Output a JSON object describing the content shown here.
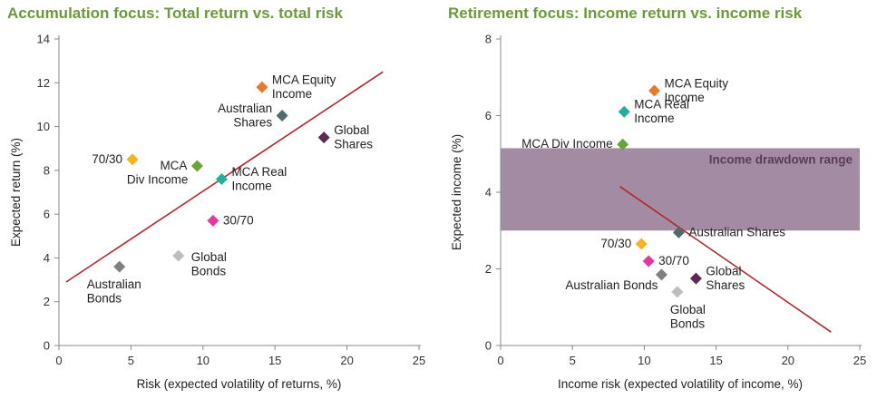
{
  "colors": {
    "title": "#6a9a3a",
    "axis": "#888888",
    "regression": "#b0282e",
    "band": "#a38ca3",
    "band_label": "#5b3a5b"
  },
  "chart_data": [
    {
      "type": "scatter",
      "title": "Accumulation focus: Total return vs. total risk",
      "xlabel": "Risk (expected volatility of returns, %)",
      "ylabel": "Expected return (%)",
      "xlim": [
        0,
        25
      ],
      "ylim": [
        0,
        14
      ],
      "xticks": [
        0,
        5,
        10,
        15,
        20,
        25
      ],
      "yticks": [
        0,
        2,
        4,
        6,
        8,
        10,
        12,
        14
      ],
      "trendline": {
        "x": [
          0.5,
          22.5
        ],
        "y": [
          2.9,
          12.5
        ]
      },
      "points": [
        {
          "label": "MCA Equity Income",
          "lines": [
            "MCA Equity",
            "Income"
          ],
          "x": 14.1,
          "y": 11.8,
          "color": "#e87a2a",
          "anchor": "right"
        },
        {
          "label": "Australian Shares",
          "lines": [
            "Australian",
            "Shares"
          ],
          "x": 15.5,
          "y": 10.5,
          "color": "#4f6b6b",
          "anchor": "left"
        },
        {
          "label": "Global Shares",
          "lines": [
            "Global",
            "Shares"
          ],
          "x": 18.4,
          "y": 9.5,
          "color": "#5a2a55",
          "anchor": "right"
        },
        {
          "label": "70/30",
          "lines": [
            "70/30"
          ],
          "x": 5.1,
          "y": 8.5,
          "color": "#f5b41e",
          "anchor": "left"
        },
        {
          "label": "MCA Div Income",
          "lines": [
            "MCA",
            "Div Income"
          ],
          "x": 9.6,
          "y": 8.2,
          "color": "#6aa33a",
          "anchor": "leftsplit"
        },
        {
          "label": "MCA Real Income",
          "lines": [
            "MCA Real",
            "Income"
          ],
          "x": 11.3,
          "y": 7.6,
          "color": "#1fb19b",
          "anchor": "right"
        },
        {
          "label": "30/70",
          "lines": [
            "30/70"
          ],
          "x": 10.7,
          "y": 5.7,
          "color": "#e8379b",
          "anchor": "right"
        },
        {
          "label": "Global Bonds",
          "lines": [
            "Global",
            "Bonds"
          ],
          "x": 8.3,
          "y": 4.1,
          "color": "#bdbdbd",
          "anchor": "below-right"
        },
        {
          "label": "Australian Bonds",
          "lines": [
            "Australian",
            "Bonds"
          ],
          "x": 4.2,
          "y": 3.6,
          "color": "#808080",
          "anchor": "below"
        }
      ]
    },
    {
      "type": "scatter",
      "title": "Retirement focus: Income return vs. income risk",
      "xlabel": "Income risk (expected volatility of income, %)",
      "ylabel": "Expected income (%)",
      "xlim": [
        0,
        25
      ],
      "ylim": [
        0,
        8
      ],
      "xticks": [
        0,
        5,
        10,
        15,
        20,
        25
      ],
      "yticks": [
        0,
        2,
        4,
        6,
        8
      ],
      "band": {
        "label": "Income drawdown range",
        "y0": 3.0,
        "y1": 5.15
      },
      "trendline": {
        "x": [
          8.3,
          23.0
        ],
        "y": [
          4.15,
          0.35
        ]
      },
      "points": [
        {
          "label": "MCA Equity Income",
          "lines": [
            "MCA Equity",
            "Income"
          ],
          "x": 10.7,
          "y": 6.65,
          "color": "#e87a2a",
          "anchor": "right"
        },
        {
          "label": "MCA Real Income",
          "lines": [
            "MCA Real",
            "Income"
          ],
          "x": 8.6,
          "y": 6.1,
          "color": "#1fb19b",
          "anchor": "right"
        },
        {
          "label": "MCA Div Income",
          "lines": [
            "MCA Div Income"
          ],
          "x": 8.5,
          "y": 5.25,
          "color": "#6aa33a",
          "anchor": "left"
        },
        {
          "label": "Australian Shares",
          "lines": [
            "Australian Shares"
          ],
          "x": 12.4,
          "y": 2.95,
          "color": "#4f6b6b",
          "anchor": "right"
        },
        {
          "label": "70/30",
          "lines": [
            "70/30"
          ],
          "x": 9.8,
          "y": 2.65,
          "color": "#f5b41e",
          "anchor": "left"
        },
        {
          "label": "30/70",
          "lines": [
            "30/70"
          ],
          "x": 10.3,
          "y": 2.2,
          "color": "#e8379b",
          "anchor": "right"
        },
        {
          "label": "Australian Bonds",
          "lines": [
            "Australian Bonds"
          ],
          "x": 11.2,
          "y": 1.85,
          "color": "#808080",
          "anchor": "left-low"
        },
        {
          "label": "Global Shares",
          "lines": [
            "Global",
            "Shares"
          ],
          "x": 13.6,
          "y": 1.75,
          "color": "#5a2a55",
          "anchor": "right"
        },
        {
          "label": "Global Bonds",
          "lines": [
            "Global",
            "Bonds"
          ],
          "x": 12.3,
          "y": 1.4,
          "color": "#bdbdbd",
          "anchor": "below"
        }
      ]
    }
  ]
}
